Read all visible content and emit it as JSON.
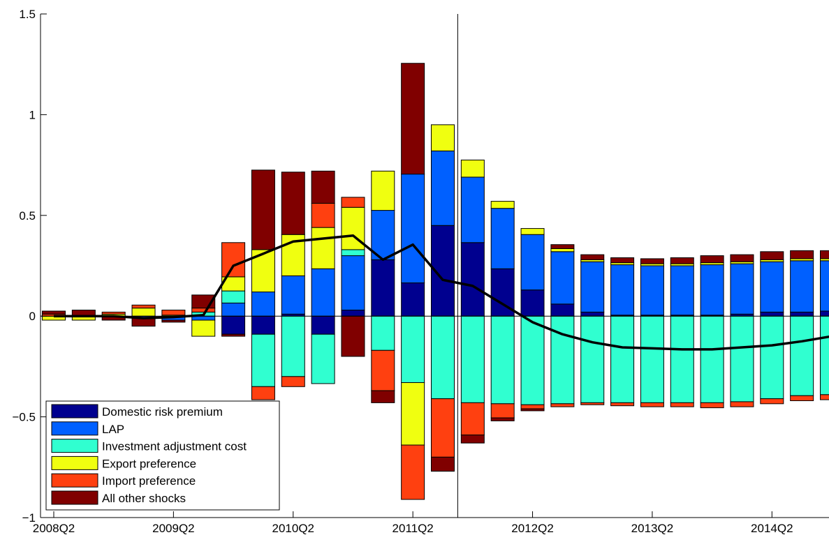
{
  "chart_data": {
    "type": "bar",
    "stacked": true,
    "x": [
      "2008Q2",
      "2008Q3",
      "2008Q4",
      "2009Q1",
      "2009Q2",
      "2009Q3",
      "2009Q4",
      "2010Q1",
      "2010Q2",
      "2010Q3",
      "2010Q4",
      "2011Q1",
      "2011Q2",
      "2011Q3",
      "2011Q4",
      "2012Q1",
      "2012Q2",
      "2012Q3",
      "2012Q4",
      "2013Q1",
      "2013Q2",
      "2013Q3",
      "2013Q4",
      "2014Q1",
      "2014Q2",
      "2014Q3",
      "2014Q4"
    ],
    "x_tick_labels": [
      "2008Q2",
      "2009Q2",
      "2010Q2",
      "2011Q2",
      "2012Q2",
      "2013Q2",
      "2014Q2"
    ],
    "ylim": [
      -1,
      1.5
    ],
    "y_ticks": [
      -1,
      -0.5,
      0,
      0.5,
      1,
      1.5
    ],
    "y_tick_labels": [
      "−1",
      "−0.5",
      "0",
      "0.5",
      "1",
      "1.5"
    ],
    "vertical_marker_x": "2011Q4",
    "legend_position": "bottom-left",
    "series": [
      {
        "name": "Domestic risk premium",
        "color": "#00008f",
        "values": [
          0,
          0,
          0,
          0,
          0,
          0,
          -0.09,
          -0.09,
          0.01,
          -0.09,
          0.03,
          0.28,
          0.165,
          0.45,
          0.365,
          0.235,
          0.13,
          0.06,
          0.02,
          0.005,
          0.005,
          0.005,
          0.005,
          0.01,
          0.02,
          0.02,
          0.025
        ]
      },
      {
        "name": "LAP",
        "color": "#0060ff",
        "values": [
          0,
          0,
          0,
          -0.01,
          -0.02,
          -0.02,
          0.065,
          0.12,
          0.19,
          0.235,
          0.27,
          0.245,
          0.54,
          0.37,
          0.325,
          0.3,
          0.275,
          0.26,
          0.25,
          0.25,
          0.245,
          0.245,
          0.25,
          0.25,
          0.25,
          0.255,
          0.25
        ]
      },
      {
        "name": "Investment adjustment cost",
        "color": "#30ffd0",
        "values": [
          0,
          0,
          0,
          0,
          0,
          0.02,
          0.06,
          -0.26,
          -0.3,
          -0.245,
          0.03,
          -0.17,
          -0.33,
          -0.41,
          -0.43,
          -0.435,
          -0.44,
          -0.435,
          -0.43,
          -0.43,
          -0.43,
          -0.43,
          -0.43,
          -0.425,
          -0.41,
          -0.395,
          -0.39
        ]
      },
      {
        "name": "Export preference",
        "color": "#f0ff10",
        "values": [
          -0.02,
          -0.02,
          0.01,
          0.04,
          0.005,
          -0.08,
          0.07,
          0.21,
          0.205,
          0.205,
          0.21,
          0.195,
          -0.31,
          0.13,
          0.085,
          0.035,
          0.03,
          0.015,
          0.01,
          0.01,
          0.01,
          0.01,
          0.01,
          0.01,
          0.01,
          0.01,
          0.01
        ]
      },
      {
        "name": "Import preference",
        "color": "#ff4010",
        "values": [
          0.01,
          0,
          0.01,
          0.015,
          0.025,
          0.02,
          0.17,
          -0.065,
          -0.05,
          0.12,
          0.05,
          -0.2,
          -0.27,
          -0.29,
          -0.16,
          -0.07,
          -0.02,
          -0.015,
          -0.01,
          -0.015,
          -0.02,
          -0.02,
          -0.025,
          -0.025,
          -0.025,
          -0.025,
          -0.025
        ]
      },
      {
        "name": "All other shocks",
        "color": "#800000",
        "values": [
          0.015,
          0.03,
          -0.02,
          -0.04,
          -0.01,
          0.065,
          -0.01,
          0.395,
          0.31,
          0.16,
          -0.2,
          -0.06,
          0.55,
          -0.07,
          -0.04,
          -0.015,
          -0.01,
          0.02,
          0.025,
          0.025,
          0.025,
          0.03,
          0.035,
          0.035,
          0.04,
          0.04,
          0.04
        ]
      }
    ],
    "line": {
      "name": "",
      "color": "#000000",
      "values": [
        0,
        0,
        0,
        -0.01,
        -0.005,
        0.005,
        0.25,
        0.31,
        0.37,
        0.385,
        0.4,
        0.28,
        0.355,
        0.18,
        0.15,
        0.06,
        -0.03,
        -0.09,
        -0.13,
        -0.155,
        -0.16,
        -0.165,
        -0.165,
        -0.155,
        -0.145,
        -0.125,
        -0.1
      ]
    }
  }
}
